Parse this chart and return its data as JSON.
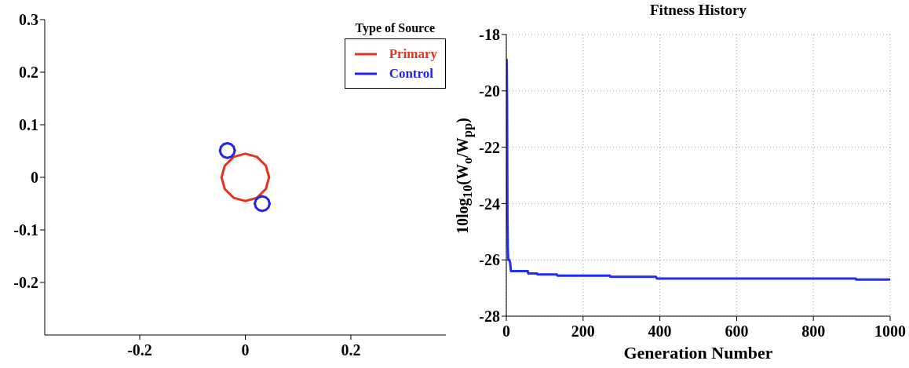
{
  "chart_data": [
    {
      "type": "line",
      "xlim": [
        -0.38,
        0.38
      ],
      "xticks": [
        -0.2,
        0,
        0.2
      ],
      "ylim": [
        -0.3,
        0.3
      ],
      "yticks": [
        -0.2,
        -0.1,
        0,
        0.1,
        0.2,
        0.3
      ],
      "legend": "top right",
      "legend_title": "Type of Source",
      "marker": "none",
      "line_style": "solid",
      "series": [
        {
          "name": "Primary",
          "color": "#e8311f",
          "x": [
            -0.045,
            -0.039,
            -0.022,
            0,
            0.022,
            0.039,
            0.045
          ],
          "values": [
            0,
            0.022,
            0.039,
            0.045,
            0.039,
            0.022,
            0
          ]
        },
        {
          "color": "#e8311f",
          "x": [
            -0.045,
            -0.039,
            -0.022,
            0,
            0.022,
            0.039,
            0.045
          ],
          "values": [
            0,
            -0.022,
            -0.039,
            -0.045,
            -0.039,
            -0.022,
            0
          ]
        },
        {
          "name": "Control",
          "color": "#2323f0",
          "x": [
            -0.048,
            -0.046,
            -0.041,
            -0.034,
            -0.027,
            -0.022,
            -0.02,
            0,
            0.018,
            0.02,
            0.025,
            0.032,
            0.039,
            0.044,
            0.046
          ],
          "values": [
            0.051,
            0.058,
            0.063,
            0.065,
            0.063,
            0.058,
            0.051,
            null,
            -0.05,
            -0.043,
            -0.038,
            -0.036,
            -0.038,
            -0.043,
            -0.05
          ]
        },
        {
          "color": "#2323f0",
          "x": [
            -0.048,
            -0.046,
            -0.041,
            -0.034,
            -0.027,
            -0.022,
            -0.02,
            0,
            0.018,
            0.02,
            0.025,
            0.032,
            0.039,
            0.044,
            0.046
          ],
          "values": [
            0.051,
            0.044,
            0.039,
            0.037,
            0.039,
            0.044,
            0.051,
            null,
            -0.05,
            -0.057,
            -0.062,
            -0.064,
            -0.062,
            -0.057,
            -0.05
          ]
        }
      ]
    },
    {
      "type": "line",
      "title": "Fitness History",
      "xlabel": "Generation Number",
      "ylabel": "10log$_{10}$(W$_{o}$/W$_{pp}$)",
      "xlim": [
        0,
        1000
      ],
      "xticks": [
        0,
        200,
        400,
        600,
        800,
        1000
      ],
      "ylim": [
        -28,
        -18
      ],
      "yticks": [
        -28,
        -26,
        -24,
        -22,
        -20,
        -18
      ],
      "grid": true,
      "marker": "none",
      "line_style": "solid",
      "color": "#1f2ef5",
      "x": [
        1,
        2,
        3,
        4,
        5,
        8,
        10,
        12,
        56,
        57,
        80,
        81,
        132,
        133,
        270,
        271,
        390,
        392,
        910,
        912,
        1000
      ],
      "values": [
        -18.9,
        -20.5,
        -24.5,
        -25.6,
        -26.0,
        -26.0,
        -26.1,
        -26.4,
        -26.4,
        -26.48,
        -26.48,
        -26.52,
        -26.52,
        -26.56,
        -26.56,
        -26.6,
        -26.6,
        -26.66,
        -26.66,
        -26.7,
        -26.7
      ]
    }
  ]
}
